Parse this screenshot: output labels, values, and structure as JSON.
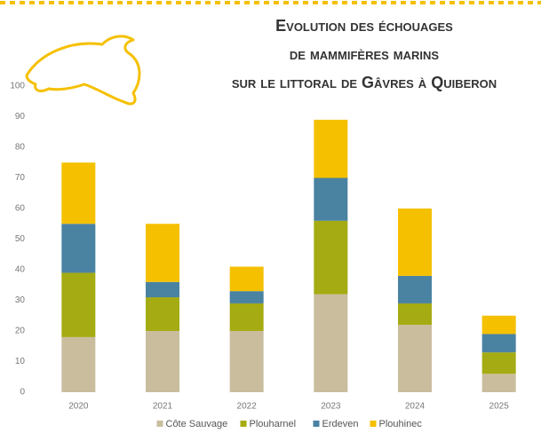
{
  "chart_data": {
    "type": "stacked_bar",
    "title": [
      "Evolution des échouages",
      "de mammifères marins",
      "sur le littoral de Gâvres à Quiberon"
    ],
    "categories": [
      "2020",
      "2021",
      "2022",
      "2023",
      "2024",
      "2025"
    ],
    "series": [
      {
        "name": "Côte Sauvage",
        "color": "#c9bd9e",
        "values": [
          18,
          20,
          20,
          32,
          22,
          6
        ]
      },
      {
        "name": "Plouharnel",
        "color": "#a5ab12",
        "values": [
          21,
          11,
          9,
          24,
          7,
          7
        ]
      },
      {
        "name": "Erdeven",
        "color": "#4a82a2",
        "values": [
          16,
          5,
          4,
          14,
          9,
          6
        ]
      },
      {
        "name": "Plouhinec",
        "color": "#f5c000",
        "values": [
          20,
          19,
          8,
          19,
          22,
          6
        ]
      }
    ],
    "ylim": [
      0,
      100
    ],
    "yticks": [
      0,
      10,
      20,
      30,
      40,
      50,
      60,
      70,
      80,
      90,
      100
    ],
    "grid": false,
    "legend": "bottom"
  }
}
